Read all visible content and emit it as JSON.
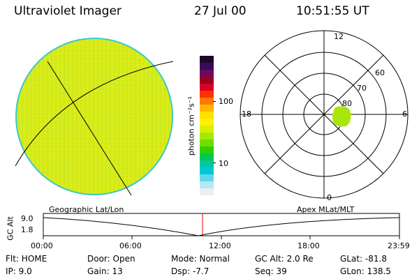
{
  "header": {
    "title": "Ultraviolet Imager",
    "date": "27 Jul 00",
    "time": "10:51:55 UT"
  },
  "colorbar": {
    "label": "photon cm⁻²s⁻¹",
    "tick_100": "100",
    "tick_10": "10",
    "colors_top_to_bottom": [
      "#1a0a2a",
      "#3a0a5a",
      "#6a0a60",
      "#a0001a",
      "#d8002a",
      "#ff3000",
      "#ff7a00",
      "#ffb800",
      "#ffe000",
      "#fff000",
      "#d8f000",
      "#a8e800",
      "#70dc00",
      "#30d000",
      "#00c850",
      "#00c8a0",
      "#00c8d8",
      "#60d8e8",
      "#b8e8f0",
      "#e8f0f4"
    ]
  },
  "polar": {
    "label_top": "12",
    "label_right": "6",
    "label_left": "18",
    "label_bottom": "0",
    "label_60": "60",
    "label_70": "70",
    "label_80": "80"
  },
  "timeline": {
    "axis_title": "GC Alt",
    "left_header": "Geographic Lat/Lon",
    "right_header": "Apex MLat/MLT",
    "y_top": "9.0",
    "y_bottom": "1.8",
    "x_ticks": [
      "00:00",
      "06:00",
      "12:00",
      "18:00",
      "23:59"
    ]
  },
  "footer": {
    "flt": "Flt: HOME",
    "ip": "IP:  9.0",
    "door": "Door: Open",
    "gain": "Gain: 13",
    "mode": "Mode: Normal",
    "dsp": "Dsp:   -7.7",
    "gcalt": "GC Alt: 2.0 Re",
    "seq": "Seq: 39",
    "glat": "GLat: -81.8",
    "glon": "GLon: 138.5"
  }
}
